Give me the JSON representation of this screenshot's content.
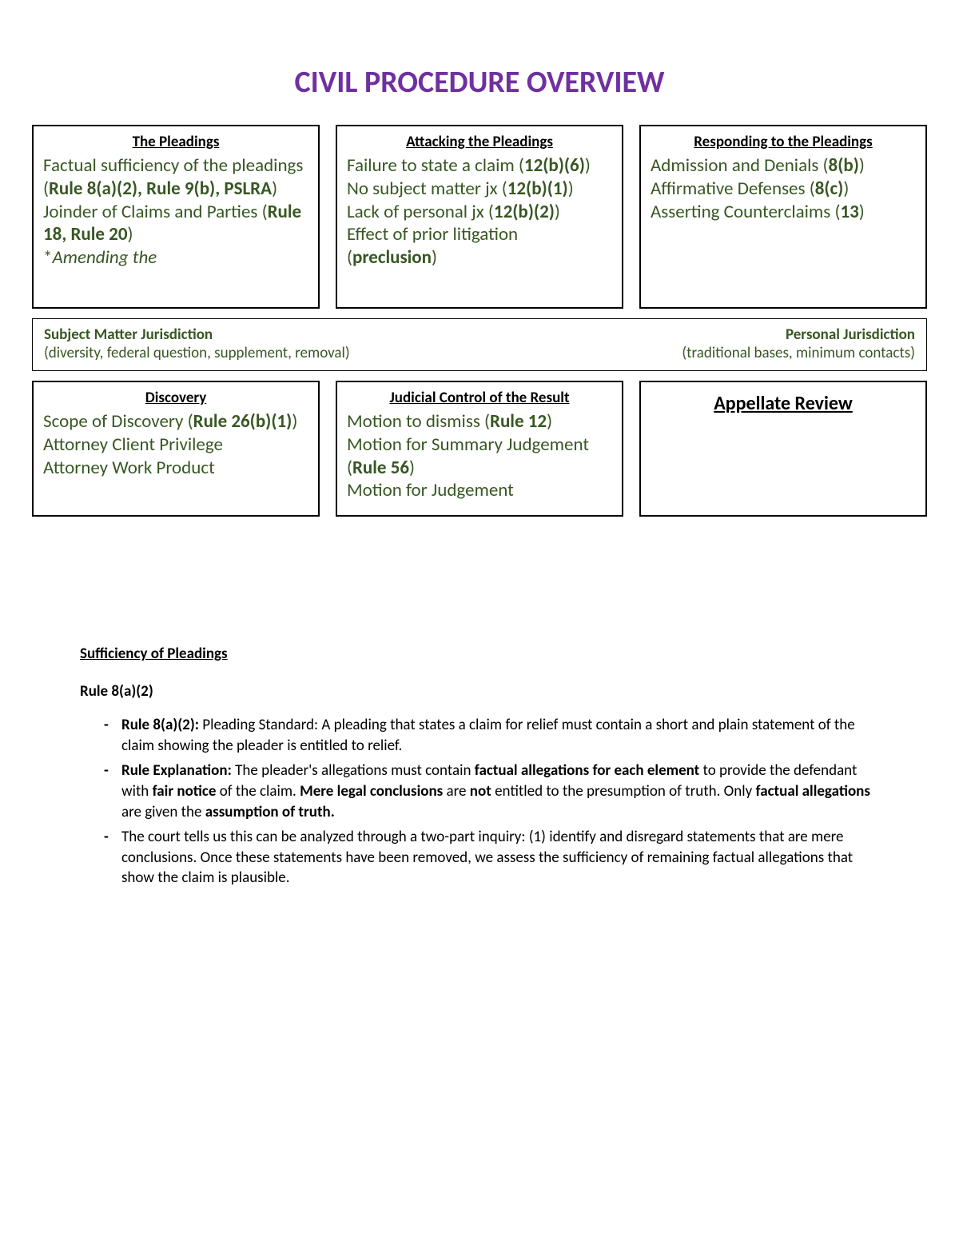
{
  "title": "CIVIL PROCEDURE OVERVIEW",
  "colors": {
    "title": "#7030a0",
    "body_green": "#385723",
    "border": "#000000"
  },
  "row1": {
    "box1": {
      "heading": "The Pleadings",
      "body_html": "Factual sufficiency of the pleadings (<b>Rule 8(a)(2), Rule 9(b), PSLRA</b>)<br>Joinder of Claims and Parties (<b>Rule 18, Rule 20</b>)<br>*<i>Amending the</i>"
    },
    "box2": {
      "heading": "Attacking the Pleadings",
      "body_html": "Failure to state a claim (<b>12(b)(6)</b>)<br>No subject matter jx (<b>12(b)(1)</b>)<br>Lack of personal jx (<b>12(b)(2)</b>)<br>Effect of prior litigation (<b>preclusion</b>)"
    },
    "box3": {
      "heading": "Responding to the Pleadings",
      "body_html": "Admission and Denials (<b>8(b)</b>)<br>Affirmative Defenses (<b>8(c)</b>)<br>Asserting Counterclaims (<b>13</b>)"
    }
  },
  "jurisdiction": {
    "left_head": "Subject Matter Jurisdiction",
    "left_sub": "(diversity, federal question, supplement, removal)",
    "right_head": "Personal Jurisdiction",
    "right_sub": "(traditional bases, minimum contacts)"
  },
  "row2": {
    "box1": {
      "heading": "Discovery",
      "body_html": "Scope of Discovery (<b>Rule 26(b)(1)</b>)<br>Attorney Client Privilege<br>Attorney Work Product"
    },
    "box2": {
      "heading": "Judicial Control of the Result",
      "body_html": "Motion to dismiss (<b>Rule 12</b>)<br>Motion for Summary Judgement (<b>Rule 56</b>)<br>Motion for Judgement"
    },
    "box3": {
      "heading": "Appellate Review"
    }
  },
  "notes": {
    "section_title": "Sufficiency of Pleadings ",
    "rule_title": "Rule 8(a)(2)",
    "items": [
      "<b>Rule 8(a)(2):</b> Pleading Standard: A pleading that states a claim for relief must contain a short and plain statement of the claim showing the pleader is entitled to relief.",
      "<b>Rule Explanation:</b> The pleader's allegations must contain <b>factual allegations for each element</b> to provide the defendant with <b>fair notice</b> of the claim. <b>Mere legal conclusions</b> are <b>not</b> entitled to the presumption of truth. Only <b>factual allegations</b> are given the <b>assumption of truth.</b>",
      "The court tells us this can be analyzed through a two-part inquiry: (1) identify and disregard statements that are mere conclusions. Once these statements have been removed, we assess the sufficiency of remaining factual allegations that show the claim is plausible."
    ]
  }
}
